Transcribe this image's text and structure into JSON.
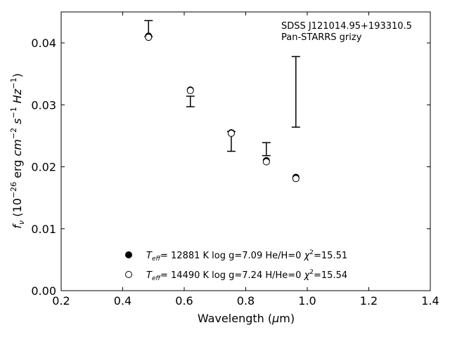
{
  "chart_data": {
    "type": "scatter",
    "annotation": [
      "SDSS J121014.95+193310.5",
      "Pan-STARRS grizy"
    ],
    "xlabel": {
      "pre": "Wavelength (",
      "sym": "μ",
      "post": "m)"
    },
    "ylabel": {
      "f": "f",
      "nu": "ν",
      "a": " (10",
      "e1": "−26",
      "b": " erg ",
      "cm": "cm",
      "e2": "−2",
      "s": " s",
      "e3": "−1",
      "hz": " Hz",
      "e4": "−1",
      "c": ")"
    },
    "xlim": [
      0.2,
      1.4
    ],
    "ylim": [
      0.0,
      0.045
    ],
    "xticks": [
      "0.2",
      "0.4",
      "0.6",
      "0.8",
      "1.0",
      "1.2",
      "1.4"
    ],
    "yticks": [
      "0.00",
      "0.01",
      "0.02",
      "0.03",
      "0.04"
    ],
    "observed": [
      {
        "x": 0.484,
        "low": 0.041,
        "high": 0.0436
      },
      {
        "x": 0.62,
        "low": 0.0297,
        "high": 0.0314
      },
      {
        "x": 0.753,
        "low": 0.0225,
        "high": 0.0257
      },
      {
        "x": 0.867,
        "low": 0.0218,
        "high": 0.0239
      },
      {
        "x": 0.963,
        "low": 0.0264,
        "high": 0.0378
      }
    ],
    "series": [
      {
        "marker": "filled",
        "x": [
          0.484,
          0.62,
          0.753,
          0.867,
          0.963
        ],
        "y": [
          0.0411,
          0.0324,
          0.0255,
          0.021,
          0.0183
        ],
        "label": {
          "t": "T",
          "eff": "eff",
          "rest": "= 12881 K  log g=7.09  He/H=0  ",
          "chi": "χ",
          "two": "2",
          "end": "=15.51"
        }
      },
      {
        "marker": "open",
        "x": [
          0.484,
          0.62,
          0.753,
          0.867,
          0.963
        ],
        "y": [
          0.0409,
          0.0323,
          0.0254,
          0.0208,
          0.0181
        ],
        "label": {
          "t": "T",
          "eff": "eff",
          "rest": "= 14490 K  log g=7.24  H/He=0  ",
          "chi": "χ",
          "two": "2",
          "end": "=15.54"
        }
      }
    ],
    "grid": false,
    "legend": "bottom-center"
  }
}
